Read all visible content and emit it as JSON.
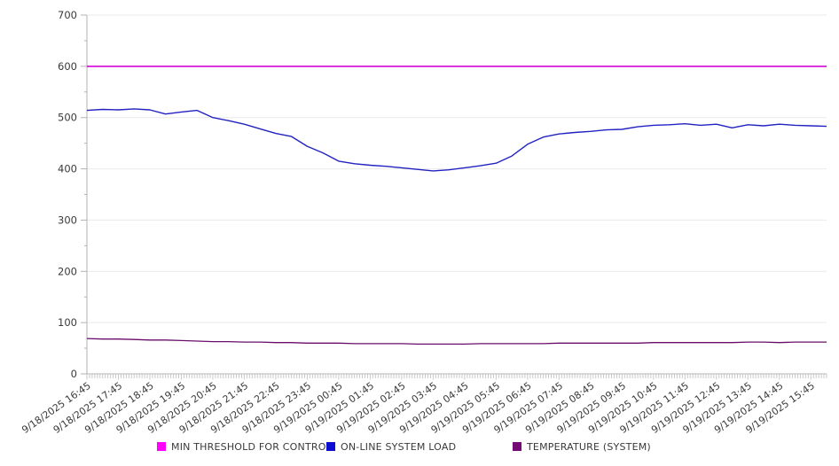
{
  "chart_data": {
    "type": "line",
    "title": "",
    "xlabel": "",
    "ylabel": "",
    "ylim": [
      0,
      700
    ],
    "y_ticks": [
      0,
      100,
      200,
      300,
      400,
      500,
      600,
      700
    ],
    "y_minor_tick_interval": 50,
    "grid": true,
    "legend_position": "bottom",
    "point_step_minutes": 30,
    "x_minor_tick_minutes": 5,
    "x_label_every_minutes": 60,
    "x_tick_labels": [
      "9/18/2025 16:45",
      "9/18/2025 17:45",
      "9/18/2025 18:45",
      "9/18/2025 19:45",
      "9/18/2025 20:45",
      "9/18/2025 21:45",
      "9/18/2025 22:45",
      "9/18/2025 23:45",
      "9/19/2025 00:45",
      "9/19/2025 01:45",
      "9/19/2025 02:45",
      "9/19/2025 03:45",
      "9/19/2025 04:45",
      "9/19/2025 05:45",
      "9/19/2025 06:45",
      "9/19/2025 07:45",
      "9/19/2025 08:45",
      "9/19/2025 09:45",
      "9/19/2025 10:45",
      "9/19/2025 11:45",
      "9/19/2025 12:45",
      "9/19/2025 13:45",
      "9/19/2025 14:45",
      "9/19/2025 15:45"
    ],
    "colors": {
      "grid": "#e9e9e9",
      "axis": "#b3b3b3",
      "tick_text": "#3a3a3a"
    },
    "series": [
      {
        "name": "MIN THRESHOLD FOR CONTROL",
        "color": "#ff00ff",
        "line_color": "#d816d8",
        "line_width": 1.8,
        "values": [
          600,
          600
        ]
      },
      {
        "name": "ON-LINE SYSTEM LOAD",
        "color": "#0d0dd0",
        "line_color": "#2222c2",
        "line_width": 1.4,
        "values": [
          514,
          516,
          515,
          517,
          515,
          507,
          511,
          514,
          500,
          494,
          487,
          478,
          469,
          463,
          444,
          431,
          415,
          410,
          407,
          405,
          402,
          399,
          396,
          398,
          402,
          406,
          411,
          425,
          448,
          462,
          468,
          471,
          473,
          476,
          477,
          482,
          485,
          486,
          488,
          485,
          487,
          480,
          486,
          484,
          487,
          485,
          484,
          483
        ]
      },
      {
        "name": "TEMPERATURE (SYSTEM)",
        "color": "#740974",
        "line_color": "#6a0c6a",
        "line_width": 1.3,
        "values": [
          69,
          68,
          68,
          67,
          66,
          66,
          65,
          64,
          63,
          63,
          62,
          62,
          61,
          61,
          60,
          60,
          60,
          59,
          59,
          59,
          59,
          58,
          58,
          58,
          58,
          59,
          59,
          59,
          59,
          59,
          60,
          60,
          60,
          60,
          60,
          60,
          61,
          61,
          61,
          61,
          61,
          61,
          62,
          62,
          61,
          62,
          62,
          62
        ]
      }
    ]
  }
}
